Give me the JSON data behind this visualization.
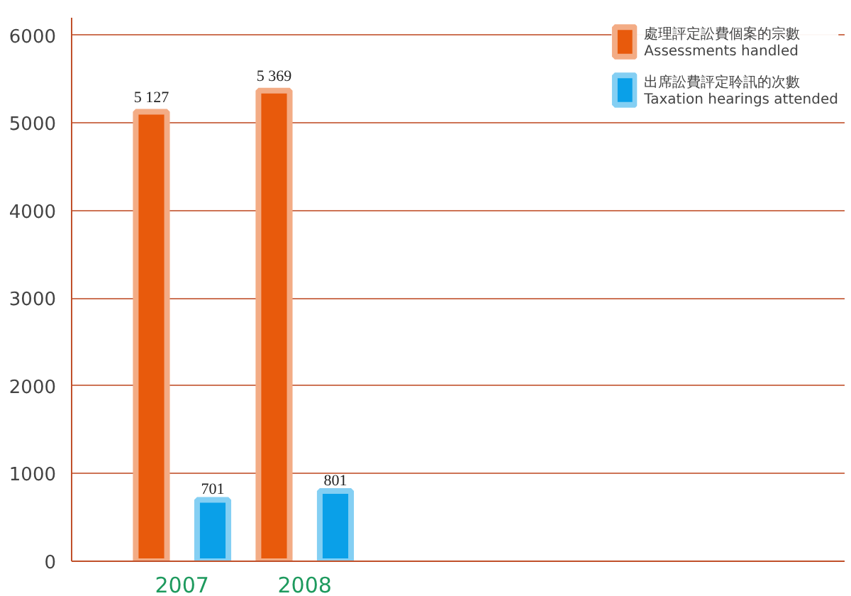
{
  "chart_data": {
    "type": "bar",
    "categories": [
      "2007",
      "2008"
    ],
    "series": [
      {
        "name": "處理評定訟費個案的宗數\nAssessments handled",
        "color": "#e85a0c",
        "values": [
          5127,
          5369
        ],
        "value_labels": [
          "5 127",
          "5 369"
        ]
      },
      {
        "name": "出席訟費評定聆訊的次數\nTaxation hearings attended",
        "color": "#0aa0e8",
        "values": [
          701,
          801
        ],
        "value_labels": [
          "701",
          "801"
        ]
      }
    ],
    "ylim": [
      0,
      6200
    ],
    "yticks": [
      0,
      1000,
      2000,
      3000,
      4000,
      5000,
      6000
    ],
    "grid": "y",
    "legend": "top right"
  }
}
